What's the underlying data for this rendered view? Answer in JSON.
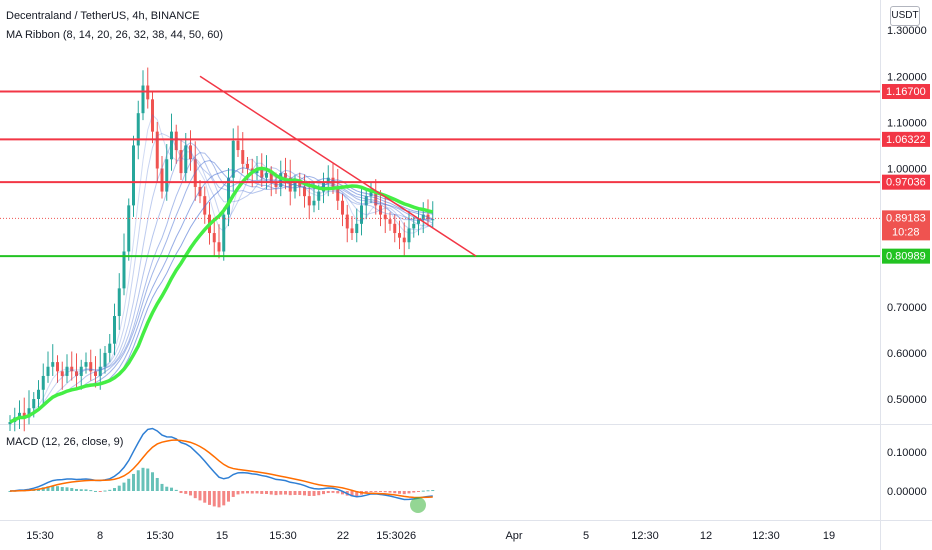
{
  "header": {
    "title": "Decentraland / TetherUS, 4h, BINANCE",
    "indicator": "MA Ribbon (8, 14, 20, 26, 32, 38, 44, 50, 60)",
    "unit_button": "USDT"
  },
  "macd_pane": {
    "label": "MACD (12, 26, close, 9)",
    "ticks": [
      "0.10000",
      "0.00000"
    ]
  },
  "price_axis": {
    "ticks": [
      "1.30000",
      "1.20000",
      "1.10000",
      "1.00000",
      "0.70000",
      "0.60000",
      "0.50000"
    ]
  },
  "levels": [
    {
      "label": "1.16700",
      "color": "#f23645"
    },
    {
      "label": "1.06322",
      "color": "#f23645"
    },
    {
      "label": "0.97036",
      "color": "#f23645"
    },
    {
      "label": "0.89183",
      "sub": "10:28",
      "color": "#ef5350"
    },
    {
      "label": "0.80989",
      "color": "#22c322"
    }
  ],
  "time_axis": {
    "ticks": [
      "15:30",
      "8",
      "15:30",
      "15",
      "15:30",
      "22",
      "15:30",
      "26",
      "Apr",
      "5",
      "12:30",
      "12",
      "12:30",
      "19"
    ]
  },
  "colors": {
    "up": "#26a69a",
    "down": "#ef5350",
    "ribbon_slow": "#44ee44",
    "macd_line": "#2f7fd4",
    "signal_line": "#ff6d00",
    "trend_line": "#f23645"
  },
  "chart_data": {
    "type": "candlestick",
    "symbol": "Decentraland / TetherUS",
    "interval": "4h",
    "exchange": "BINANCE",
    "close_series": [
      0.45,
      0.46,
      0.47,
      0.46,
      0.48,
      0.5,
      0.52,
      0.55,
      0.57,
      0.58,
      0.56,
      0.55,
      0.57,
      0.56,
      0.55,
      0.57,
      0.58,
      0.56,
      0.55,
      0.57,
      0.6,
      0.62,
      0.68,
      0.74,
      0.82,
      0.92,
      1.05,
      1.12,
      1.18,
      1.15,
      1.08,
      1.0,
      0.95,
      1.02,
      1.08,
      1.04,
      0.99,
      1.05,
      1.02,
      0.96,
      0.94,
      0.9,
      0.86,
      0.84,
      0.82,
      0.9,
      0.98,
      1.06,
      1.04,
      1.01,
      1.0,
      0.99,
      1.0,
      0.98,
      0.99,
      0.97,
      0.96,
      0.99,
      0.98,
      0.95,
      0.97,
      0.96,
      0.94,
      0.92,
      0.93,
      0.95,
      0.97,
      0.98,
      0.96,
      0.93,
      0.9,
      0.87,
      0.86,
      0.88,
      0.92,
      0.94,
      0.95,
      0.92,
      0.9,
      0.89,
      0.88,
      0.86,
      0.85,
      0.84,
      0.87,
      0.88,
      0.89,
      0.9,
      0.89,
      0.89
    ],
    "ma_ribbon_periods": [
      8,
      14,
      20,
      26,
      32,
      38,
      44,
      50,
      60
    ],
    "horizontal_levels": [
      1.167,
      1.06322,
      0.97036,
      0.80989
    ],
    "current_price": 0.89183,
    "trend_line": {
      "from": {
        "x": "Mar 14",
        "y": 1.2
      },
      "to": {
        "x": "Mar 28",
        "y": 0.81
      }
    },
    "macd": {
      "fast": 12,
      "slow": 26,
      "source": "close",
      "signal": 9
    },
    "y_range": [
      0.45,
      1.3
    ],
    "macd_range": [
      -0.05,
      0.13
    ]
  }
}
